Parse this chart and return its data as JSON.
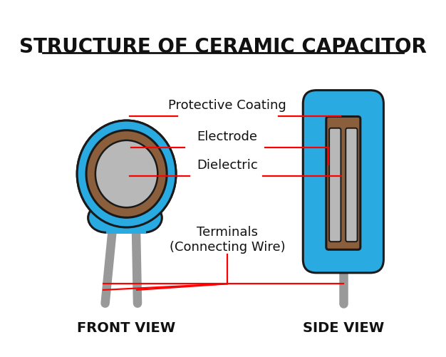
{
  "title": "STRUCTURE OF CERAMIC CAPACITOR",
  "title_fontsize": 20,
  "label_fontsize": 13,
  "view_label_fontsize": 14,
  "colors": {
    "blue": "#29ABE2",
    "brown": "#8B5E3C",
    "gray_light": "#B8B8B8",
    "gray_wire": "#999999",
    "red": "#FF0000",
    "black": "#111111",
    "white": "#FFFFFF",
    "bg": "#FFFFFF",
    "outline": "#1a1a1a"
  },
  "front_view_label": "FRONT VIEW",
  "side_view_label": "SIDE VIEW",
  "label_protective": "Protective Coating",
  "label_electrode": "Electrode",
  "label_dielectric": "Dielectric",
  "label_terminals": "Terminals\n(Connecting Wire)"
}
